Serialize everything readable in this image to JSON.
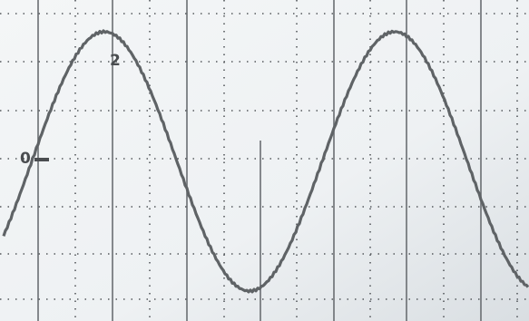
{
  "markers": {
    "ground": "0",
    "cursor": "2"
  }
}
